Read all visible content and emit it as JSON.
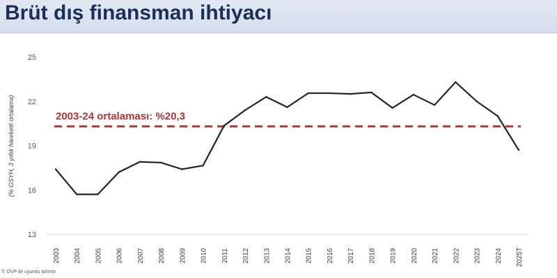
{
  "header": {
    "title": "Brüt dış finansman ihtiyacı"
  },
  "footnote": "T: OVP ile uyumlu tahmin",
  "colors": {
    "line": "#1c2438",
    "average": "#b03535",
    "title": "#1b2f5a",
    "header_bg": "#dce3ef"
  },
  "chart_data": {
    "type": "line",
    "title": "",
    "xlabel": "",
    "ylabel": "(% GSYH, 3 yıllık hareketli ortalama)",
    "ylim": [
      13,
      25
    ],
    "yticks": [
      13,
      16,
      19,
      22,
      25
    ],
    "grid": false,
    "categories": [
      "2003",
      "2004",
      "2005",
      "2006",
      "2007",
      "2008",
      "2009",
      "2010",
      "2011",
      "2012",
      "2013",
      "2014",
      "2015",
      "2016",
      "2017",
      "2018",
      "2019",
      "2020",
      "2021",
      "2022",
      "2023",
      "2024",
      "2025T"
    ],
    "series": [
      {
        "values": [
          17.4,
          15.7,
          15.7,
          17.2,
          17.9,
          17.85,
          17.4,
          17.65,
          20.35,
          21.4,
          22.3,
          21.6,
          22.55,
          22.55,
          22.5,
          22.6,
          21.55,
          22.45,
          21.75,
          23.3,
          22.0,
          21.0,
          18.7
        ]
      }
    ],
    "reference_line": {
      "value": 20.3,
      "label": "2003-24 ortalaması: %20,3",
      "style": "dashed"
    }
  }
}
